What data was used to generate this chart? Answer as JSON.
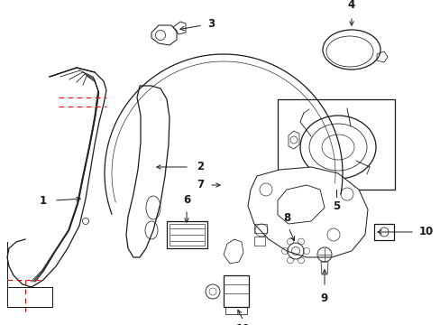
{
  "bg_color": "#ffffff",
  "lc": "#1a1a1a",
  "rc": "#ee0000",
  "lw": 0.9,
  "figsize": [
    4.89,
    3.6
  ],
  "dpi": 100
}
